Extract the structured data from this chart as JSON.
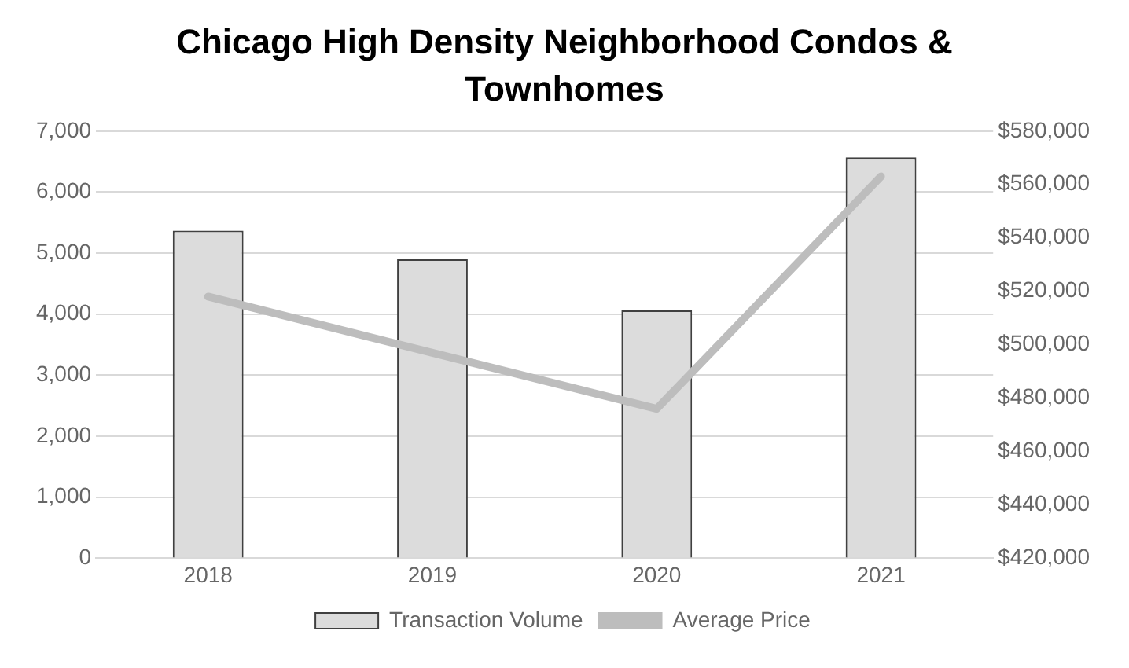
{
  "chart_data": {
    "type": "bar",
    "title": "Chicago High Density Neighborhood Condos & Townhomes",
    "categories": [
      "2018",
      "2019",
      "2020",
      "2021"
    ],
    "series": [
      {
        "name": "Transaction Volume",
        "color": "#dcdcdc",
        "values": [
          5370,
          4900,
          4060,
          6570
        ]
      },
      {
        "name": "Average Price",
        "type": "line",
        "axis": "y2",
        "color": "#bdbdbd",
        "values": [
          518000,
          497000,
          476000,
          563000
        ]
      }
    ],
    "ylim": [
      0,
      7000
    ],
    "yticks": [
      {
        "value": 0,
        "label": "0"
      },
      {
        "value": 1000,
        "label": "1,000"
      },
      {
        "value": 2000,
        "label": "2,000"
      },
      {
        "value": 3000,
        "label": "3,000"
      },
      {
        "value": 4000,
        "label": "4,000"
      },
      {
        "value": 5000,
        "label": "5,000"
      },
      {
        "value": 6000,
        "label": "6,000"
      },
      {
        "value": 7000,
        "label": "7,000"
      }
    ],
    "y2lim": [
      420000,
      580000
    ],
    "y2ticks": [
      {
        "value": 420000,
        "label": "$420,000"
      },
      {
        "value": 440000,
        "label": "$440,000"
      },
      {
        "value": 460000,
        "label": "$460,000"
      },
      {
        "value": 480000,
        "label": "$480,000"
      },
      {
        "value": 500000,
        "label": "$500,000"
      },
      {
        "value": 520000,
        "label": "$520,000"
      },
      {
        "value": 540000,
        "label": "$540,000"
      },
      {
        "value": 560000,
        "label": "$560,000"
      },
      {
        "value": 580000,
        "label": "$580,000"
      }
    ],
    "grid": "y",
    "legend": "bottom",
    "marker": "none"
  }
}
